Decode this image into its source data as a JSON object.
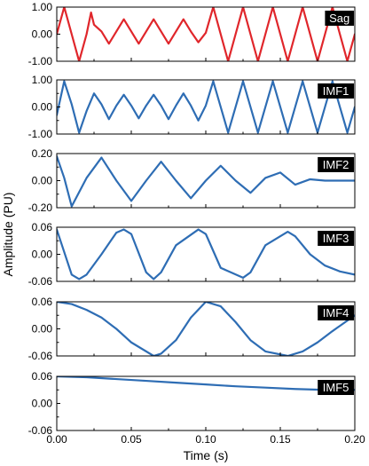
{
  "chart_data": {
    "type": "line",
    "shared_xlabel": "Time (s)",
    "shared_ylabel": "Amplitude (PU)",
    "xlim": [
      0,
      0.2
    ],
    "xticks": [
      0,
      0.05,
      0.1,
      0.15,
      0.2
    ],
    "xtick_labels": [
      "0.00",
      "0.05",
      "0.10",
      "0.15",
      "0.20"
    ],
    "grid": false,
    "panels": [
      {
        "name": "Sag",
        "color": "#e0262b",
        "ylim": [
          -1,
          1
        ],
        "yticks": [
          -1,
          0,
          1
        ],
        "ytick_labels": [
          "-1.00",
          "0.00",
          "1.00"
        ],
        "x": [
          0,
          0.005,
          0.01,
          0.015,
          0.02,
          0.023,
          0.025,
          0.03,
          0.035,
          0.04,
          0.045,
          0.05,
          0.055,
          0.06,
          0.065,
          0.07,
          0.075,
          0.08,
          0.085,
          0.09,
          0.095,
          0.1,
          0.105,
          0.11,
          0.115,
          0.12,
          0.125,
          0.13,
          0.135,
          0.14,
          0.145,
          0.15,
          0.155,
          0.16,
          0.165,
          0.17,
          0.175,
          0.18,
          0.185,
          0.19,
          0.195,
          0.2
        ],
        "y": [
          0,
          1,
          0,
          -1,
          0,
          0.8,
          0.35,
          0.1,
          -0.35,
          0.1,
          0.55,
          0.1,
          -0.35,
          0.1,
          0.55,
          0.1,
          -0.35,
          0.1,
          0.55,
          0.1,
          -0.3,
          0.05,
          1,
          0,
          -1,
          0,
          1,
          0,
          -1,
          0,
          1,
          0,
          -1,
          0,
          1,
          0,
          -1,
          0,
          1,
          0,
          -1,
          0
        ]
      },
      {
        "name": "IMF1",
        "color": "#2e6db4",
        "ylim": [
          -1,
          1
        ],
        "yticks": [
          -1,
          0,
          1
        ],
        "ytick_labels": [
          "-1.00",
          "0.00",
          "1.00"
        ],
        "x": [
          0,
          0.005,
          0.01,
          0.015,
          0.02,
          0.025,
          0.03,
          0.035,
          0.04,
          0.045,
          0.05,
          0.055,
          0.06,
          0.065,
          0.07,
          0.075,
          0.08,
          0.085,
          0.09,
          0.095,
          0.1,
          0.105,
          0.11,
          0.115,
          0.12,
          0.125,
          0.13,
          0.135,
          0.14,
          0.145,
          0.15,
          0.155,
          0.16,
          0.165,
          0.17,
          0.175,
          0.18,
          0.185,
          0.19,
          0.195,
          0.2
        ],
        "y": [
          -0.3,
          0.95,
          0.1,
          -0.95,
          -0.15,
          0.5,
          0.1,
          -0.45,
          0.05,
          0.45,
          0.05,
          -0.42,
          0.05,
          0.45,
          0.05,
          -0.45,
          0.05,
          0.5,
          0.05,
          -0.5,
          0.05,
          0.95,
          0,
          -0.95,
          0,
          0.95,
          0,
          -0.95,
          0,
          0.95,
          0,
          -0.95,
          0,
          0.95,
          0,
          -0.95,
          0,
          0.95,
          0,
          -0.95,
          0
        ]
      },
      {
        "name": "IMF2",
        "color": "#2e6db4",
        "ylim": [
          -0.2,
          0.2
        ],
        "yticks": [
          -0.2,
          0,
          0.2
        ],
        "ytick_labels": [
          "-0.20",
          "0.00",
          "0.20"
        ],
        "x": [
          0,
          0.005,
          0.01,
          0.02,
          0.03,
          0.04,
          0.05,
          0.06,
          0.07,
          0.08,
          0.09,
          0.1,
          0.11,
          0.12,
          0.13,
          0.14,
          0.15,
          0.16,
          0.17,
          0.18,
          0.19,
          0.2
        ],
        "y": [
          0.18,
          0.02,
          -0.19,
          0.02,
          0.17,
          0.0,
          -0.15,
          0.0,
          0.14,
          0.0,
          -0.13,
          0.0,
          0.11,
          0.0,
          -0.09,
          0.02,
          0.06,
          -0.03,
          0.01,
          0.0,
          0.0,
          0.0
        ]
      },
      {
        "name": "IMF3",
        "color": "#2e6db4",
        "ylim": [
          -0.06,
          0.06
        ],
        "yticks": [
          -0.06,
          0,
          0.06
        ],
        "ytick_labels": [
          "-0.06",
          "0.00",
          "0.06"
        ],
        "x": [
          0,
          0.01,
          0.015,
          0.02,
          0.03,
          0.04,
          0.045,
          0.05,
          0.06,
          0.065,
          0.07,
          0.08,
          0.095,
          0.1,
          0.11,
          0.125,
          0.13,
          0.14,
          0.155,
          0.16,
          0.17,
          0.18,
          0.19,
          0.2
        ],
        "y": [
          0.055,
          -0.045,
          -0.055,
          -0.045,
          0.0,
          0.048,
          0.055,
          0.045,
          -0.04,
          -0.055,
          -0.04,
          0.02,
          0.055,
          0.045,
          -0.03,
          -0.052,
          -0.04,
          0.02,
          0.05,
          0.04,
          0.0,
          -0.025,
          -0.038,
          -0.045
        ]
      },
      {
        "name": "IMF4",
        "color": "#2e6db4",
        "ylim": [
          -0.06,
          0.06
        ],
        "yticks": [
          -0.06,
          0,
          0.06
        ],
        "ytick_labels": [
          "-0.06",
          "0.00",
          "0.06"
        ],
        "x": [
          0,
          0.01,
          0.02,
          0.03,
          0.04,
          0.05,
          0.065,
          0.07,
          0.08,
          0.09,
          0.1,
          0.11,
          0.12,
          0.13,
          0.14,
          0.155,
          0.165,
          0.175,
          0.185,
          0.2
        ],
        "y": [
          0.06,
          0.055,
          0.042,
          0.025,
          0.0,
          -0.03,
          -0.06,
          -0.055,
          -0.025,
          0.025,
          0.06,
          0.05,
          0.015,
          -0.025,
          -0.05,
          -0.06,
          -0.05,
          -0.03,
          -0.005,
          0.03
        ]
      },
      {
        "name": "IMF5",
        "color": "#2e6db4",
        "ylim": [
          -0.06,
          0.06
        ],
        "yticks": [
          -0.06,
          0,
          0.06
        ],
        "ytick_labels": [
          "-0.06",
          "0.00",
          "0.06"
        ],
        "x": [
          0,
          0.02,
          0.04,
          0.06,
          0.08,
          0.1,
          0.12,
          0.14,
          0.16,
          0.18,
          0.2
        ],
        "y": [
          0.06,
          0.058,
          0.054,
          0.05,
          0.046,
          0.042,
          0.038,
          0.035,
          0.032,
          0.03,
          0.03
        ]
      }
    ]
  }
}
